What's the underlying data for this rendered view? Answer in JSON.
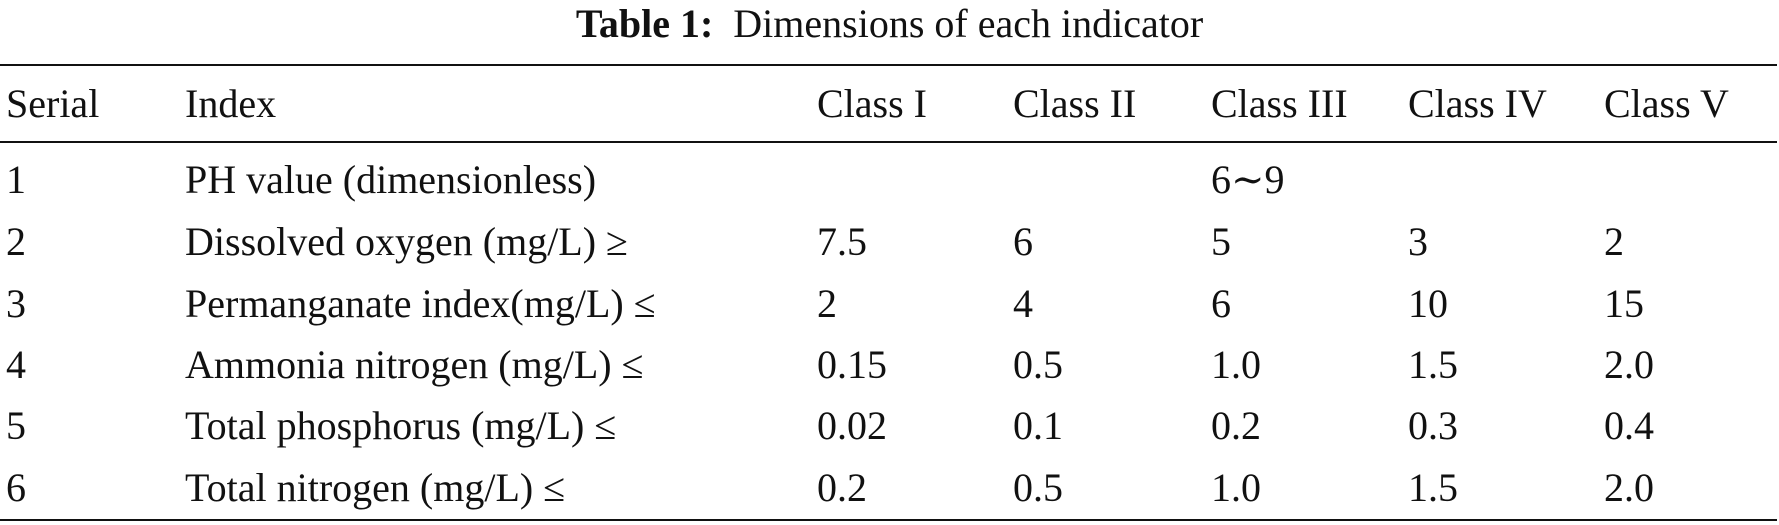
{
  "caption": {
    "label": "Table 1:",
    "text": "Dimensions of each indicator"
  },
  "table": {
    "header": [
      "Serial",
      "Index",
      "Class I",
      "Class II",
      "Class III",
      "Class IV",
      "Class V"
    ],
    "rows": [
      [
        "1",
        "PH value (dimensionless)",
        null,
        null,
        "6∼9",
        null,
        null
      ],
      [
        "2",
        "Dissolved oxygen (mg/L) ≥",
        "7.5",
        "6",
        "5",
        "3",
        "2"
      ],
      [
        "3",
        "Permanganate index(mg/L) ≤",
        "2",
        "4",
        "6",
        "10",
        "15"
      ],
      [
        "4",
        "Ammonia nitrogen (mg/L) ≤",
        "0.15",
        "0.5",
        "1.0",
        "1.5",
        "2.0"
      ],
      [
        "5",
        "Total phosphorus (mg/L) ≤",
        "0.02",
        "0.1",
        "0.2",
        "0.3",
        "0.4"
      ],
      [
        "6",
        "Total nitrogen (mg/L) ≤",
        "0.2",
        "0.5",
        "1.0",
        "1.5",
        "2.0"
      ]
    ]
  }
}
